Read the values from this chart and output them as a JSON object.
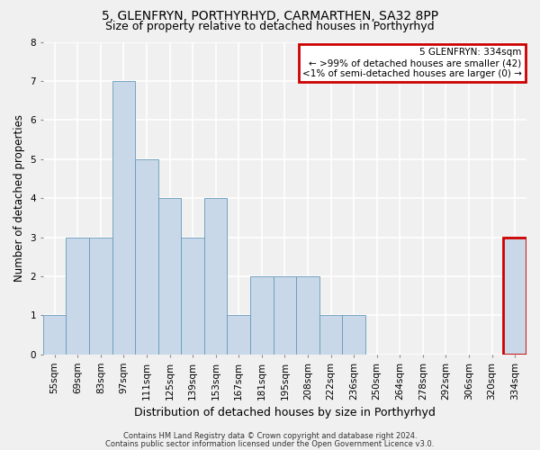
{
  "title1": "5, GLENFRYN, PORTHYRHYD, CARMARTHEN, SA32 8PP",
  "title2": "Size of property relative to detached houses in Porthyrhyd",
  "xlabel": "Distribution of detached houses by size in Porthyrhyd",
  "ylabel": "Number of detached properties",
  "categories": [
    "55sqm",
    "69sqm",
    "83sqm",
    "97sqm",
    "111sqm",
    "125sqm",
    "139sqm",
    "153sqm",
    "167sqm",
    "181sqm",
    "195sqm",
    "208sqm",
    "222sqm",
    "236sqm",
    "250sqm",
    "264sqm",
    "278sqm",
    "292sqm",
    "306sqm",
    "320sqm",
    "334sqm"
  ],
  "values": [
    1,
    3,
    3,
    7,
    5,
    4,
    3,
    4,
    1,
    2,
    2,
    2,
    1,
    1,
    0,
    0,
    0,
    0,
    0,
    0,
    3
  ],
  "bar_color": "#c8d8e8",
  "bar_edge_color": "#6699bb",
  "highlight_bar_index": 20,
  "highlight_bar_edge_color": "#cc0000",
  "annotation_box_text": "5 GLENFRYN: 334sqm\n← >99% of detached houses are smaller (42)\n<1% of semi-detached houses are larger (0) →",
  "annotation_box_color": "#ffffff",
  "annotation_box_edge_color": "#cc0000",
  "ylim": [
    0,
    8
  ],
  "yticks": [
    0,
    1,
    2,
    3,
    4,
    5,
    6,
    7,
    8
  ],
  "footer1": "Contains HM Land Registry data © Crown copyright and database right 2024.",
  "footer2": "Contains public sector information licensed under the Open Government Licence v3.0.",
  "background_color": "#f0f0f0",
  "grid_color": "#ffffff",
  "title1_fontsize": 10,
  "title2_fontsize": 9,
  "tick_fontsize": 7.5,
  "ylabel_fontsize": 8.5,
  "xlabel_fontsize": 9,
  "footer_fontsize": 6,
  "ann_fontsize": 7.5
}
